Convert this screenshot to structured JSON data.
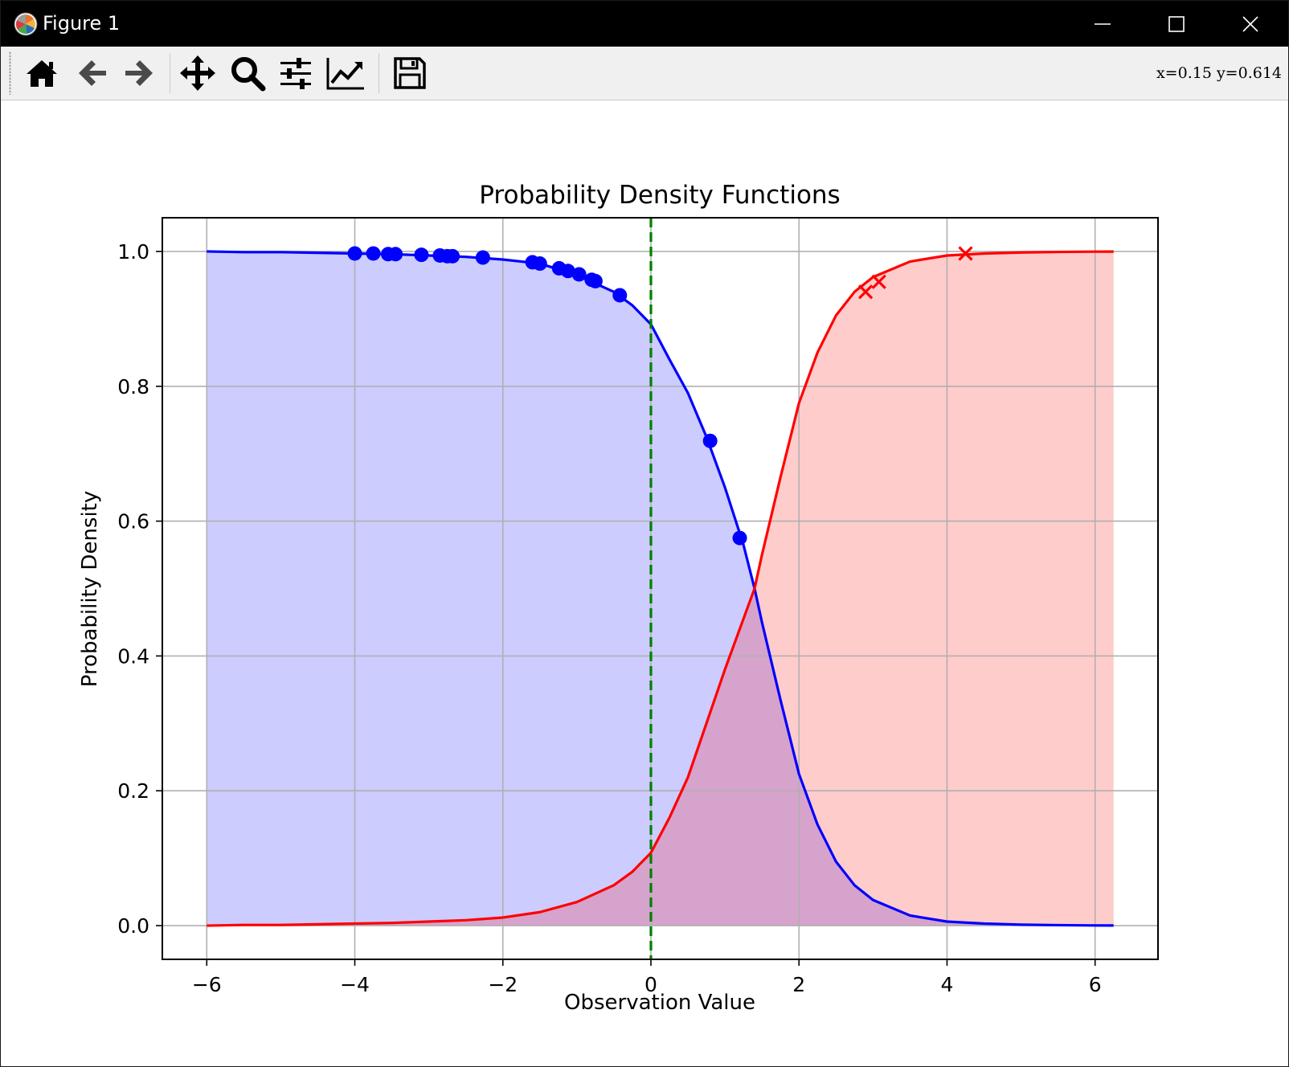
{
  "window": {
    "title": "Figure 1",
    "app_icon": "matplotlib-logo-icon",
    "controls": [
      "minimize-icon",
      "maximize-icon",
      "close-icon"
    ]
  },
  "toolbar": {
    "buttons": [
      {
        "name": "home-button",
        "icon": "home-icon"
      },
      {
        "name": "back-button",
        "icon": "arrow-left-icon"
      },
      {
        "name": "forward-button",
        "icon": "arrow-right-icon"
      },
      {
        "name": "pan-button",
        "icon": "move-arrows-icon"
      },
      {
        "name": "zoom-button",
        "icon": "magnifier-icon"
      },
      {
        "name": "subplots-button",
        "icon": "sliders-icon"
      },
      {
        "name": "edit-axes-button",
        "icon": "line-chart-icon"
      },
      {
        "name": "save-button",
        "icon": "floppy-disk-icon"
      }
    ],
    "coordinates": "x=0.15  y=0.614"
  },
  "chart_data": {
    "type": "line",
    "title": "Probability Density Functions",
    "xlabel": "Observation Value",
    "ylabel": "Probability Density",
    "xlim": [
      -6.6,
      6.85
    ],
    "ylim": [
      -0.05,
      1.05
    ],
    "xticks": [
      -6,
      -4,
      -2,
      0,
      2,
      4,
      6
    ],
    "xtick_labels": [
      "−6",
      "−4",
      "−2",
      "0",
      "2",
      "4",
      "6"
    ],
    "yticks": [
      0.0,
      0.2,
      0.4,
      0.6,
      0.8,
      1.0
    ],
    "ytick_labels": [
      "0.0",
      "0.2",
      "0.4",
      "0.6",
      "0.8",
      "1.0"
    ],
    "grid": true,
    "curves": [
      {
        "color": "#0000ff",
        "fill_color": "#0000ff",
        "fill_opacity": 0.2,
        "x": [
          -6.0,
          -5.5,
          -5.0,
          -4.5,
          -4.0,
          -3.5,
          -3.0,
          -2.5,
          -2.0,
          -1.5,
          -1.0,
          -0.5,
          -0.25,
          0.0,
          0.25,
          0.5,
          0.75,
          1.0,
          1.25,
          1.4,
          1.5,
          1.75,
          2.0,
          2.25,
          2.5,
          2.75,
          3.0,
          3.5,
          4.0,
          4.5,
          5.0,
          5.5,
          6.0,
          6.25
        ],
        "y": [
          1.0,
          0.999,
          0.999,
          0.998,
          0.997,
          0.996,
          0.994,
          0.992,
          0.988,
          0.982,
          0.965,
          0.94,
          0.92,
          0.892,
          0.84,
          0.79,
          0.725,
          0.65,
          0.565,
          0.5,
          0.45,
          0.335,
          0.225,
          0.15,
          0.095,
          0.06,
          0.038,
          0.015,
          0.006,
          0.003,
          0.0015,
          0.0007,
          0.0003,
          0.0002
        ]
      },
      {
        "color": "#ff0000",
        "fill_color": "#ff0000",
        "fill_opacity": 0.2,
        "x": [
          -6.0,
          -5.5,
          -5.0,
          -4.5,
          -4.0,
          -3.5,
          -3.0,
          -2.5,
          -2.0,
          -1.5,
          -1.0,
          -0.5,
          -0.25,
          0.0,
          0.25,
          0.5,
          0.75,
          1.0,
          1.25,
          1.4,
          1.5,
          1.75,
          2.0,
          2.25,
          2.5,
          2.75,
          3.0,
          3.5,
          4.0,
          4.5,
          5.0,
          5.5,
          6.0,
          6.25
        ],
        "y": [
          0.0,
          0.001,
          0.001,
          0.002,
          0.003,
          0.004,
          0.006,
          0.008,
          0.012,
          0.02,
          0.035,
          0.06,
          0.08,
          0.108,
          0.16,
          0.22,
          0.3,
          0.38,
          0.455,
          0.5,
          0.55,
          0.665,
          0.775,
          0.85,
          0.905,
          0.94,
          0.962,
          0.985,
          0.994,
          0.997,
          0.9985,
          0.9993,
          0.9997,
          0.9998
        ]
      }
    ],
    "scatter_points": [
      {
        "marker": "circle",
        "color": "#0000ff",
        "x": [
          -4.0,
          -3.75,
          -3.55,
          -3.45,
          -3.1,
          -2.85,
          -2.75,
          -2.68,
          -2.27,
          -1.6,
          -1.5,
          -1.24,
          -1.12,
          -0.97,
          -0.8,
          -0.75,
          -0.42,
          0.8,
          1.2
        ],
        "y": [
          0.997,
          0.997,
          0.996,
          0.996,
          0.995,
          0.994,
          0.993,
          0.993,
          0.991,
          0.984,
          0.982,
          0.975,
          0.971,
          0.966,
          0.958,
          0.956,
          0.935,
          0.719,
          0.575
        ]
      },
      {
        "marker": "x",
        "color": "#ff0000",
        "x": [
          2.9,
          3.08,
          4.25
        ],
        "y": [
          0.94,
          0.955,
          0.997
        ]
      }
    ],
    "vline": {
      "x": 0,
      "color": "#008000",
      "style": "dashed"
    }
  }
}
